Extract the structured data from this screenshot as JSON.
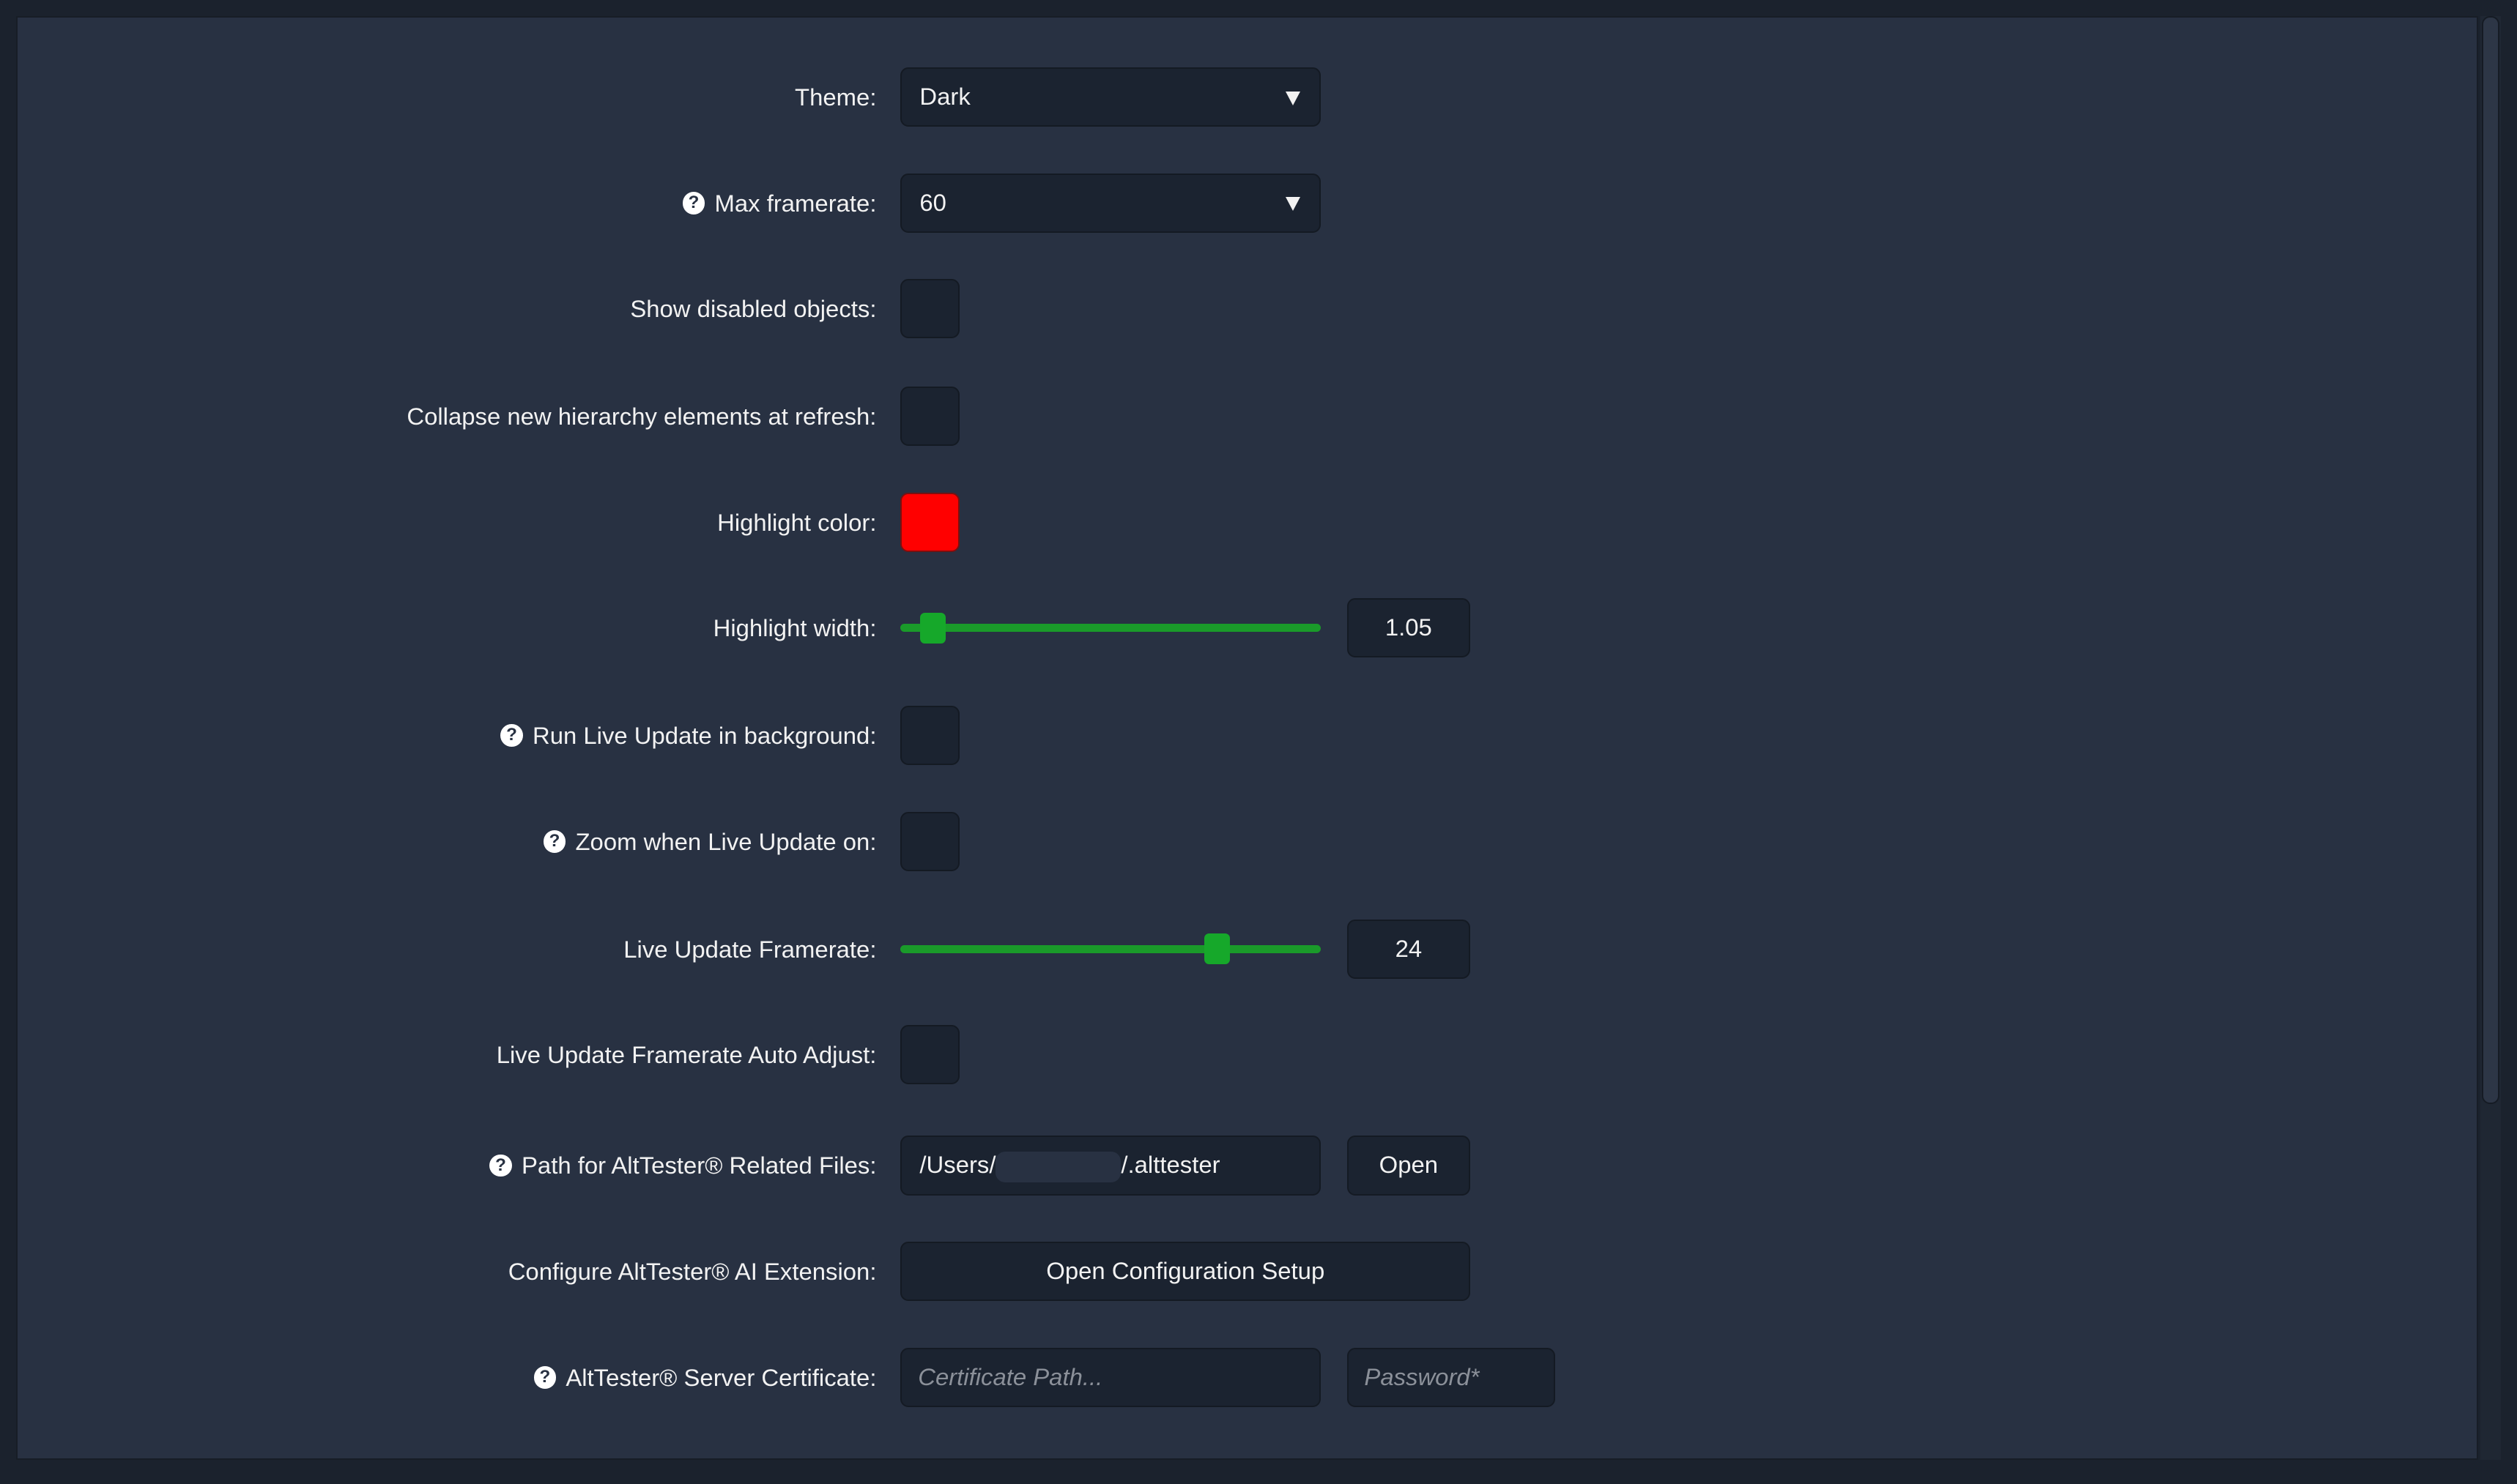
{
  "settings": {
    "theme": {
      "label": "Theme:",
      "value": "Dark"
    },
    "max_framerate": {
      "label": "Max framerate:",
      "value": "60",
      "help_icon": "question-circle-icon"
    },
    "show_disabled": {
      "label": "Show disabled objects:",
      "checked": false
    },
    "collapse_new": {
      "label": "Collapse new hierarchy elements at refresh:",
      "checked": false
    },
    "highlight_color": {
      "label": "Highlight color:",
      "color": "#ff0000"
    },
    "highlight_width": {
      "label": "Highlight width:",
      "value": "1.05",
      "slider_fraction": 0.05
    },
    "run_live_bg": {
      "label": "Run Live Update in background:",
      "checked": false
    },
    "zoom_live": {
      "label": "Zoom when Live Update on:",
      "checked": false
    },
    "live_framerate": {
      "label": "Live Update Framerate:",
      "value": "24",
      "slider_fraction": 0.77
    },
    "live_auto_adjust": {
      "label": "Live Update Framerate Auto Adjust:",
      "checked": false
    },
    "path": {
      "label": "Path for AltTester® Related Files:",
      "prefix": "/Users/",
      "suffix": "/.alttester",
      "open_label": "Open"
    },
    "ai_ext": {
      "label": "Configure AltTester® AI Extension:",
      "button_label": "Open Configuration Setup"
    },
    "certificate": {
      "label": "AltTester® Server Certificate:",
      "path_placeholder": "Certificate Path...",
      "password_placeholder": "Password*"
    }
  },
  "colors": {
    "accent_green": "#16a82a",
    "panel": "#283142",
    "field": "#1b2330"
  }
}
